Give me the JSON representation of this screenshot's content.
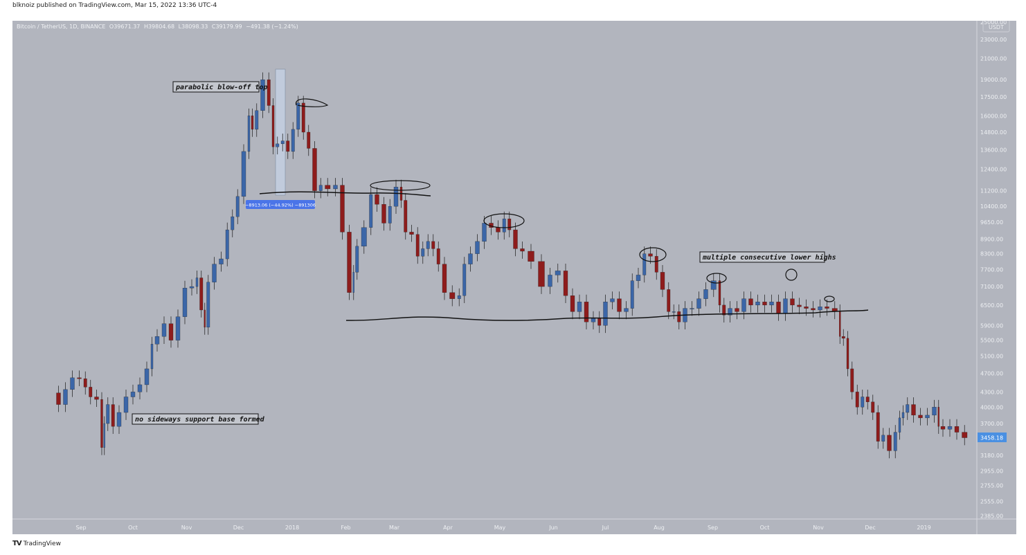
{
  "published": "blknoiz published on TradingView.com, Mar 15, 2022 13:36 UTC-4",
  "legend": {
    "symbol": "Bitcoin / TetherUS, 1D, BINANCE",
    "open": "O39671.37",
    "high": "H39804.68",
    "low": "L38098.33",
    "close": "C39179.99",
    "change": "−491.38 (−1.24%)"
  },
  "brand": "TradingView",
  "colors": {
    "background": "#b2b5be",
    "up": "#3b66a8",
    "down": "#8e1c1c",
    "wick": "#2a2a2a",
    "price_label": "#4a90e2",
    "measure": "#4a74e8"
  },
  "chart_data": {
    "type": "candlestick",
    "y_scale": "log",
    "y_unit": "USDT",
    "y_ticks": [
      25000,
      23000,
      21000,
      19000,
      17500,
      16000,
      14800,
      13600,
      12400,
      11200,
      10400,
      9650,
      8900,
      8300,
      7700,
      7100,
      6500,
      5900,
      5500,
      5100,
      4700,
      4300,
      4000,
      3700,
      3180,
      2955,
      2755,
      2555,
      2385
    ],
    "x_ticks": [
      [
        "2017-09-01",
        "Sep"
      ],
      [
        "2017-10-01",
        "Oct"
      ],
      [
        "2017-11-01",
        "Nov"
      ],
      [
        "2017-12-01",
        "Dec"
      ],
      [
        "2018-01-01",
        "2018"
      ],
      [
        "2018-02-01",
        "Feb"
      ],
      [
        "2018-03-01",
        "Mar"
      ],
      [
        "2018-04-01",
        "Apr"
      ],
      [
        "2018-05-01",
        "May"
      ],
      [
        "2018-06-01",
        "Jun"
      ],
      [
        "2018-07-01",
        "Jul"
      ],
      [
        "2018-08-01",
        "Aug"
      ],
      [
        "2018-09-01",
        "Sep"
      ],
      [
        "2018-10-01",
        "Oct"
      ],
      [
        "2018-11-01",
        "Nov"
      ],
      [
        "2018-12-01",
        "Dec"
      ],
      [
        "2019-01-01",
        "2019"
      ]
    ],
    "last_price": "3458.18",
    "closes": [
      [
        "2017-08-17",
        4280
      ],
      [
        "2017-08-21",
        4050
      ],
      [
        "2017-08-25",
        4350
      ],
      [
        "2017-08-29",
        4600
      ],
      [
        "2017-09-02",
        4580
      ],
      [
        "2017-09-05",
        4400
      ],
      [
        "2017-09-08",
        4200
      ],
      [
        "2017-09-12",
        4150
      ],
      [
        "2017-09-14",
        3300
      ],
      [
        "2017-09-15",
        3700
      ],
      [
        "2017-09-18",
        4050
      ],
      [
        "2017-09-21",
        3650
      ],
      [
        "2017-09-25",
        3900
      ],
      [
        "2017-09-29",
        4200
      ],
      [
        "2017-10-03",
        4300
      ],
      [
        "2017-10-07",
        4450
      ],
      [
        "2017-10-11",
        4800
      ],
      [
        "2017-10-13",
        5400
      ],
      [
        "2017-10-17",
        5600
      ],
      [
        "2017-10-21",
        5950
      ],
      [
        "2017-10-25",
        5500
      ],
      [
        "2017-10-29",
        6150
      ],
      [
        "2017-11-02",
        7050
      ],
      [
        "2017-11-06",
        7100
      ],
      [
        "2017-11-08",
        7400
      ],
      [
        "2017-11-11",
        6350
      ],
      [
        "2017-11-12",
        5850
      ],
      [
        "2017-11-15",
        7250
      ],
      [
        "2017-11-19",
        7900
      ],
      [
        "2017-11-23",
        8100
      ],
      [
        "2017-11-26",
        9300
      ],
      [
        "2017-11-29",
        9900
      ],
      [
        "2017-12-02",
        10900
      ],
      [
        "2017-12-06",
        13500
      ],
      [
        "2017-12-08",
        16000
      ],
      [
        "2017-12-10",
        15000
      ],
      [
        "2017-12-13",
        16400
      ],
      [
        "2017-12-17",
        19000
      ],
      [
        "2017-12-20",
        16800
      ],
      [
        "2017-12-22",
        13800
      ],
      [
        "2017-12-25",
        14000
      ],
      [
        "2017-12-28",
        14200
      ],
      [
        "2017-12-31",
        13500
      ],
      [
        "2018-01-03",
        15000
      ],
      [
        "2018-01-06",
        17000
      ],
      [
        "2018-01-09",
        14800
      ],
      [
        "2018-01-12",
        13700
      ],
      [
        "2018-01-16",
        11200
      ],
      [
        "2018-01-19",
        11500
      ],
      [
        "2018-01-24",
        11300
      ],
      [
        "2018-01-28",
        11500
      ],
      [
        "2018-02-01",
        9200
      ],
      [
        "2018-02-05",
        6900
      ],
      [
        "2018-02-06",
        7600
      ],
      [
        "2018-02-09",
        8600
      ],
      [
        "2018-02-14",
        9400
      ],
      [
        "2018-02-17",
        11000
      ],
      [
        "2018-02-21",
        10500
      ],
      [
        "2018-02-25",
        9600
      ],
      [
        "2018-02-28",
        10400
      ],
      [
        "2018-03-04",
        11400
      ],
      [
        "2018-03-06",
        10700
      ],
      [
        "2018-03-09",
        9200
      ],
      [
        "2018-03-13",
        9100
      ],
      [
        "2018-03-16",
        8200
      ],
      [
        "2018-03-19",
        8500
      ],
      [
        "2018-03-22",
        8800
      ],
      [
        "2018-03-25",
        8500
      ],
      [
        "2018-03-28",
        7900
      ],
      [
        "2018-04-01",
        6900
      ],
      [
        "2018-04-06",
        6700
      ],
      [
        "2018-04-09",
        6800
      ],
      [
        "2018-04-12",
        7900
      ],
      [
        "2018-04-16",
        8300
      ],
      [
        "2018-04-20",
        8800
      ],
      [
        "2018-04-24",
        9600
      ],
      [
        "2018-04-28",
        9400
      ],
      [
        "2018-05-02",
        9200
      ],
      [
        "2018-05-05",
        9800
      ],
      [
        "2018-05-08",
        9300
      ],
      [
        "2018-05-12",
        8500
      ],
      [
        "2018-05-16",
        8400
      ],
      [
        "2018-05-22",
        8000
      ],
      [
        "2018-05-28",
        7100
      ],
      [
        "2018-06-01",
        7500
      ],
      [
        "2018-06-06",
        7650
      ],
      [
        "2018-06-10",
        6800
      ],
      [
        "2018-06-14",
        6300
      ],
      [
        "2018-06-18",
        6600
      ],
      [
        "2018-06-22",
        6000
      ],
      [
        "2018-06-26",
        6100
      ],
      [
        "2018-06-29",
        5900
      ],
      [
        "2018-07-03",
        6600
      ],
      [
        "2018-07-07",
        6700
      ],
      [
        "2018-07-11",
        6300
      ],
      [
        "2018-07-15",
        6400
      ],
      [
        "2018-07-18",
        7300
      ],
      [
        "2018-07-22",
        7500
      ],
      [
        "2018-07-25",
        8300
      ],
      [
        "2018-07-29",
        8200
      ],
      [
        "2018-08-01",
        7600
      ],
      [
        "2018-08-05",
        7000
      ],
      [
        "2018-08-08",
        6300
      ],
      [
        "2018-08-11",
        6300
      ],
      [
        "2018-08-14",
        6000
      ],
      [
        "2018-08-18",
        6400
      ],
      [
        "2018-08-22",
        6400
      ],
      [
        "2018-08-26",
        6700
      ],
      [
        "2018-08-30",
        7000
      ],
      [
        "2018-09-04",
        7300
      ],
      [
        "2018-09-06",
        6500
      ],
      [
        "2018-09-09",
        6200
      ],
      [
        "2018-09-13",
        6400
      ],
      [
        "2018-09-17",
        6300
      ],
      [
        "2018-09-21",
        6700
      ],
      [
        "2018-09-25",
        6500
      ],
      [
        "2018-09-29",
        6600
      ],
      [
        "2018-10-03",
        6500
      ],
      [
        "2018-10-07",
        6600
      ],
      [
        "2018-10-11",
        6250
      ],
      [
        "2018-10-15",
        6700
      ],
      [
        "2018-10-19",
        6500
      ],
      [
        "2018-10-23",
        6450
      ],
      [
        "2018-10-27",
        6400
      ],
      [
        "2018-10-31",
        6350
      ],
      [
        "2018-11-04",
        6450
      ],
      [
        "2018-11-08",
        6400
      ],
      [
        "2018-11-13",
        6300
      ],
      [
        "2018-11-14",
        5600
      ],
      [
        "2018-11-17",
        5550
      ],
      [
        "2018-11-19",
        4800
      ],
      [
        "2018-11-22",
        4300
      ],
      [
        "2018-11-25",
        4000
      ],
      [
        "2018-11-28",
        4200
      ],
      [
        "2018-12-01",
        4100
      ],
      [
        "2018-12-04",
        3900
      ],
      [
        "2018-12-07",
        3400
      ],
      [
        "2018-12-10",
        3500
      ],
      [
        "2018-12-14",
        3250
      ],
      [
        "2018-12-17",
        3550
      ],
      [
        "2018-12-19",
        3800
      ],
      [
        "2018-12-21",
        3900
      ],
      [
        "2018-12-24",
        4050
      ],
      [
        "2018-12-28",
        3850
      ],
      [
        "2019-01-01",
        3800
      ],
      [
        "2019-01-05",
        3850
      ],
      [
        "2019-01-09",
        4000
      ],
      [
        "2019-01-10",
        3650
      ],
      [
        "2019-01-14",
        3600
      ],
      [
        "2019-01-18",
        3650
      ],
      [
        "2019-01-22",
        3550
      ],
      [
        "2019-01-27",
        3458.18
      ]
    ],
    "annotations": {
      "blowoff": "parabolic blow-off top",
      "no_base": "no sideways support base formed",
      "lower_highs": "multiple consecutive lower highs",
      "measure": "−8913.06 (−44.92%) −891306"
    }
  }
}
